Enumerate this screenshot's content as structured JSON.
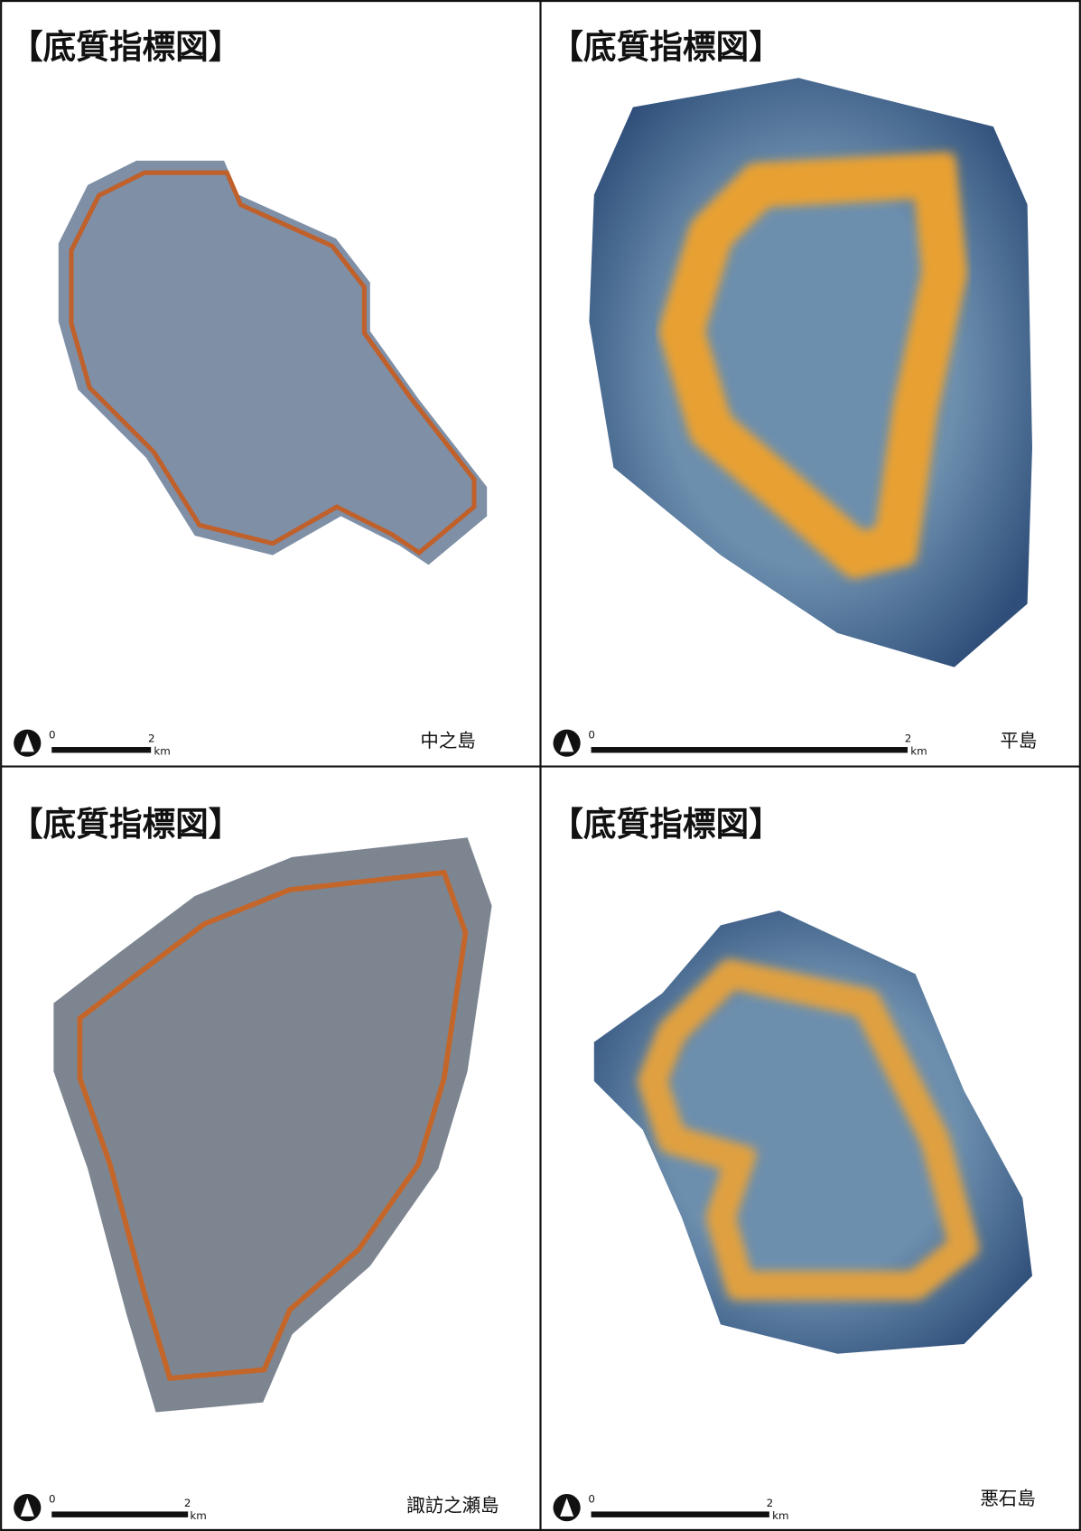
{
  "panels": [
    {
      "title": "【底質指標図】",
      "island": "中之島",
      "scale": {
        "start": 0,
        "end": 2,
        "unit": "km"
      }
    },
    {
      "title": "【底質指標図】",
      "island": "平島",
      "scale": {
        "start": 0,
        "end": 2,
        "unit": "km"
      }
    },
    {
      "title": "【底質指標図】",
      "island": "諏訪之瀬島",
      "scale": {
        "start": 0,
        "end": 2,
        "unit": "km"
      }
    },
    {
      "title": "【底質指標図】",
      "island": "悪石島",
      "scale": {
        "start": 0,
        "end": 2,
        "unit": "km"
      }
    }
  ]
}
